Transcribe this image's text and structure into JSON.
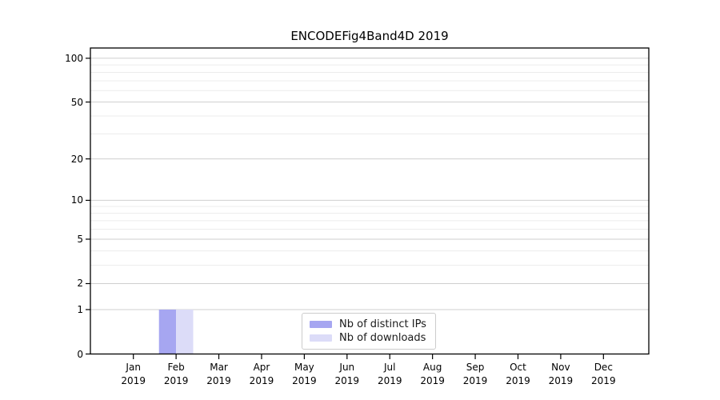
{
  "chart_data": {
    "type": "bar",
    "title": "ENCODEFig4Band4D 2019",
    "categories": [
      "Jan",
      "Feb",
      "Mar",
      "Apr",
      "May",
      "Jun",
      "Jul",
      "Aug",
      "Sep",
      "Oct",
      "Nov",
      "Dec"
    ],
    "x_year_label": "2019",
    "series": [
      {
        "name": "Nb of distinct IPs",
        "color": "#a6a6f1",
        "values": [
          0,
          1,
          0,
          0,
          0,
          0,
          0,
          0,
          0,
          0,
          0,
          0
        ]
      },
      {
        "name": "Nb of downloads",
        "color": "#dcdcf8",
        "values": [
          0,
          1,
          0,
          0,
          0,
          0,
          0,
          0,
          0,
          0,
          0,
          0
        ]
      }
    ],
    "y_scale": "log1p",
    "ylim": [
      0,
      117.5
    ],
    "y_ticks": [
      100,
      50,
      20,
      10,
      5,
      2,
      1,
      0
    ],
    "y_minor_gridlines": [
      3,
      4,
      6,
      7,
      8,
      9,
      30,
      40,
      60,
      70,
      80,
      90
    ],
    "grid": true,
    "legend_position": "lower center",
    "xlabel": "",
    "ylabel": ""
  },
  "colors": {
    "axis": "#000000",
    "grid_major": "#cfcfcf",
    "grid_minor": "#ececec",
    "background": "#ffffff",
    "legend_border": "#cccccc",
    "text": "#000000"
  }
}
